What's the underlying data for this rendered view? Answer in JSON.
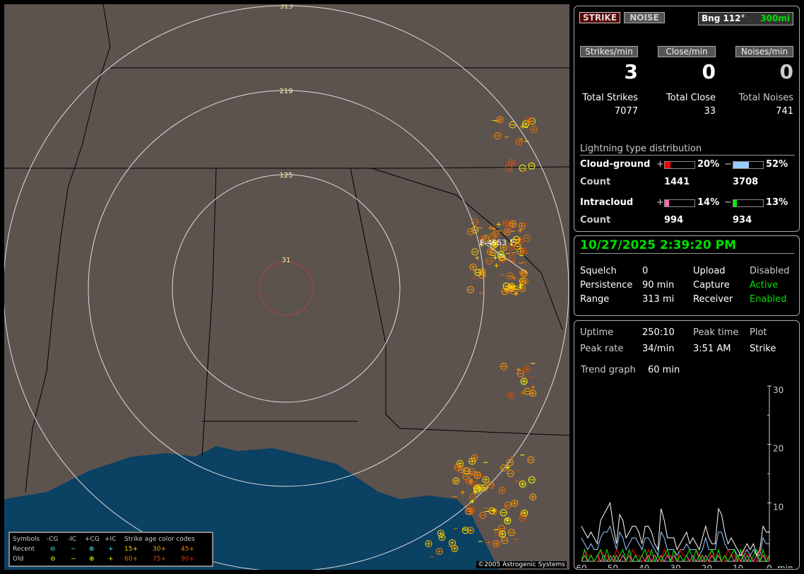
{
  "map": {
    "ring_labels": [
      "313",
      "219",
      "125",
      "31"
    ],
    "cell_label": "F-4653 1",
    "copyright": "©2005 Astrogenic Systems",
    "legend": {
      "symbols": "Symbols",
      "neg_cg": "-CG",
      "neg_ic": "-IC",
      "pos_cg": "+CG",
      "pos_ic": "+IC",
      "age_title": "Strike age color codes",
      "recent": "Recent",
      "old": "Old",
      "recent_symbols": [
        "⊖",
        "−",
        "⊕",
        "+"
      ],
      "old_symbols": [
        "⊖",
        "−",
        "⊕",
        "+"
      ],
      "ages": [
        "15+",
        "30+",
        "45+",
        "60+",
        "75+",
        "90+"
      ],
      "age_colors": [
        "#ffd000",
        "#ffa000",
        "#ff8000",
        "#e07000",
        "#e05000",
        "#e03000"
      ]
    }
  },
  "top": {
    "strike_label": "STRIKE",
    "noise_label": "NOISE",
    "bearing": "Bng 112°",
    "distance": "300mi",
    "rates": [
      {
        "label": "Strikes/min",
        "value": "3"
      },
      {
        "label": "Close/min",
        "value": "0"
      },
      {
        "label": "Noises/min",
        "value": "0"
      }
    ],
    "totals": [
      {
        "label": "Total Strikes",
        "value": "7077"
      },
      {
        "label": "Total Close",
        "value": "33"
      },
      {
        "label": "Total Noises",
        "value": "741"
      }
    ],
    "dist_title": "Lightning type distribution",
    "cg_label": "Cloud-ground",
    "ic_label": "Intracloud",
    "count_label": "Count",
    "plus": "+",
    "minus": "−",
    "cg_pos": {
      "pct": "20%",
      "fill": 20,
      "count": "1441",
      "color": "#ff0000"
    },
    "cg_neg": {
      "pct": "52%",
      "fill": 52,
      "count": "3708",
      "color": "#99ccff"
    },
    "ic_pos": {
      "pct": "14%",
      "fill": 14,
      "count": "994",
      "color": "#ff66aa"
    },
    "ic_neg": {
      "pct": "13%",
      "fill": 13,
      "count": "934",
      "color": "#00ee00"
    }
  },
  "status": {
    "datetime": "10/27/2025 2:39:20 PM",
    "rows": [
      {
        "k1": "Squelch",
        "v1": "0",
        "k2": "Upload",
        "v2": "Disabled"
      },
      {
        "k1": "Persistence",
        "v1": "90 min",
        "k2": "Capture",
        "v2": "Active"
      },
      {
        "k1": "Range",
        "v1": "313 mi",
        "k2": "Receiver",
        "v2": "Enabled"
      }
    ]
  },
  "stats": {
    "uptime_label": "Uptime",
    "uptime": "250:10",
    "peak_time_label": "Peak time",
    "plot_label": "Plot",
    "peak_rate_label": "Peak rate",
    "peak_rate": "34/min",
    "peak_time": "3:51 AM",
    "plot": "Strike",
    "trend_label": "Trend graph",
    "trend": "60 min",
    "graph": {
      "x_ticks": [
        "60",
        "50",
        "40",
        "30",
        "20",
        "10",
        "0"
      ],
      "x_unit": "min",
      "y_ticks": [
        "30",
        "20",
        "10"
      ],
      "ylim": [
        0,
        30
      ],
      "total": [
        6,
        5,
        4,
        5,
        4,
        3,
        7,
        8,
        9,
        10,
        6,
        3,
        8,
        7,
        4,
        5,
        6,
        6,
        5,
        3,
        6,
        6,
        5,
        3,
        2,
        9,
        7,
        4,
        4,
        4,
        2,
        3,
        4,
        5,
        3,
        4,
        3,
        2,
        4,
        6,
        4,
        3,
        3,
        9,
        8,
        5,
        3,
        4,
        3,
        2,
        1,
        2,
        3,
        2,
        3,
        1,
        2,
        6,
        5,
        5
      ]
    }
  }
}
